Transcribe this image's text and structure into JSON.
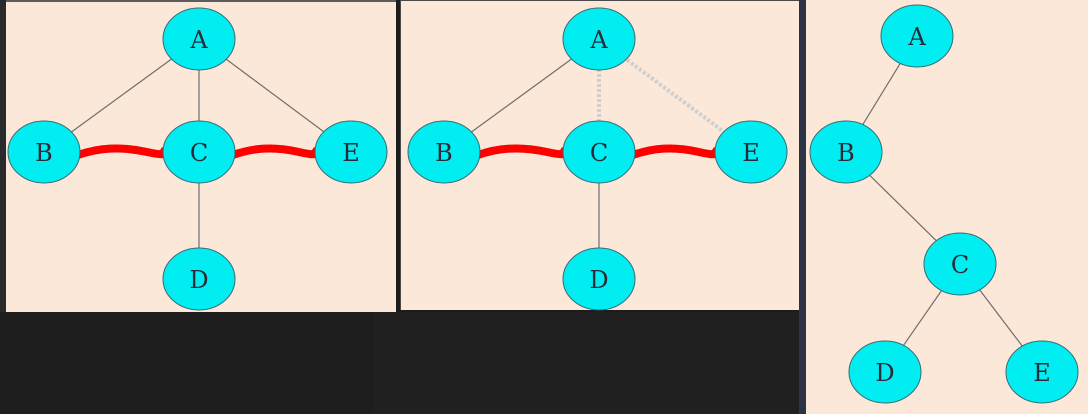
{
  "panels": [
    {
      "name": "graph-1",
      "nodes": [
        {
          "id": "A",
          "label": "A"
        },
        {
          "id": "B",
          "label": "B"
        },
        {
          "id": "C",
          "label": "C"
        },
        {
          "id": "D",
          "label": "D"
        },
        {
          "id": "E",
          "label": "E"
        }
      ],
      "edges": [
        [
          "A",
          "B"
        ],
        [
          "A",
          "C"
        ],
        [
          "A",
          "E"
        ],
        [
          "C",
          "D"
        ]
      ],
      "marked_edges": [
        [
          "B",
          "C"
        ],
        [
          "C",
          "E"
        ]
      ]
    },
    {
      "name": "graph-2",
      "nodes": [
        {
          "id": "A",
          "label": "A"
        },
        {
          "id": "B",
          "label": "B"
        },
        {
          "id": "C",
          "label": "C"
        },
        {
          "id": "D",
          "label": "D"
        },
        {
          "id": "E",
          "label": "E"
        }
      ],
      "edges": [
        [
          "A",
          "B"
        ],
        [
          "C",
          "D"
        ]
      ],
      "faint_edges": [
        [
          "A",
          "C"
        ],
        [
          "A",
          "E"
        ]
      ],
      "marked_edges": [
        [
          "B",
          "C"
        ],
        [
          "C",
          "E"
        ]
      ]
    },
    {
      "name": "tree-result",
      "nodes": [
        {
          "id": "A",
          "label": "A"
        },
        {
          "id": "B",
          "label": "B"
        },
        {
          "id": "C",
          "label": "C"
        },
        {
          "id": "D",
          "label": "D"
        },
        {
          "id": "E",
          "label": "E"
        }
      ],
      "edges": [
        [
          "A",
          "B"
        ],
        [
          "B",
          "C"
        ],
        [
          "C",
          "D"
        ],
        [
          "C",
          "E"
        ]
      ]
    }
  ],
  "colors": {
    "node_fill": "#00eef2",
    "panel_bg": "#fbe8d9",
    "mark": "#ff0000"
  }
}
